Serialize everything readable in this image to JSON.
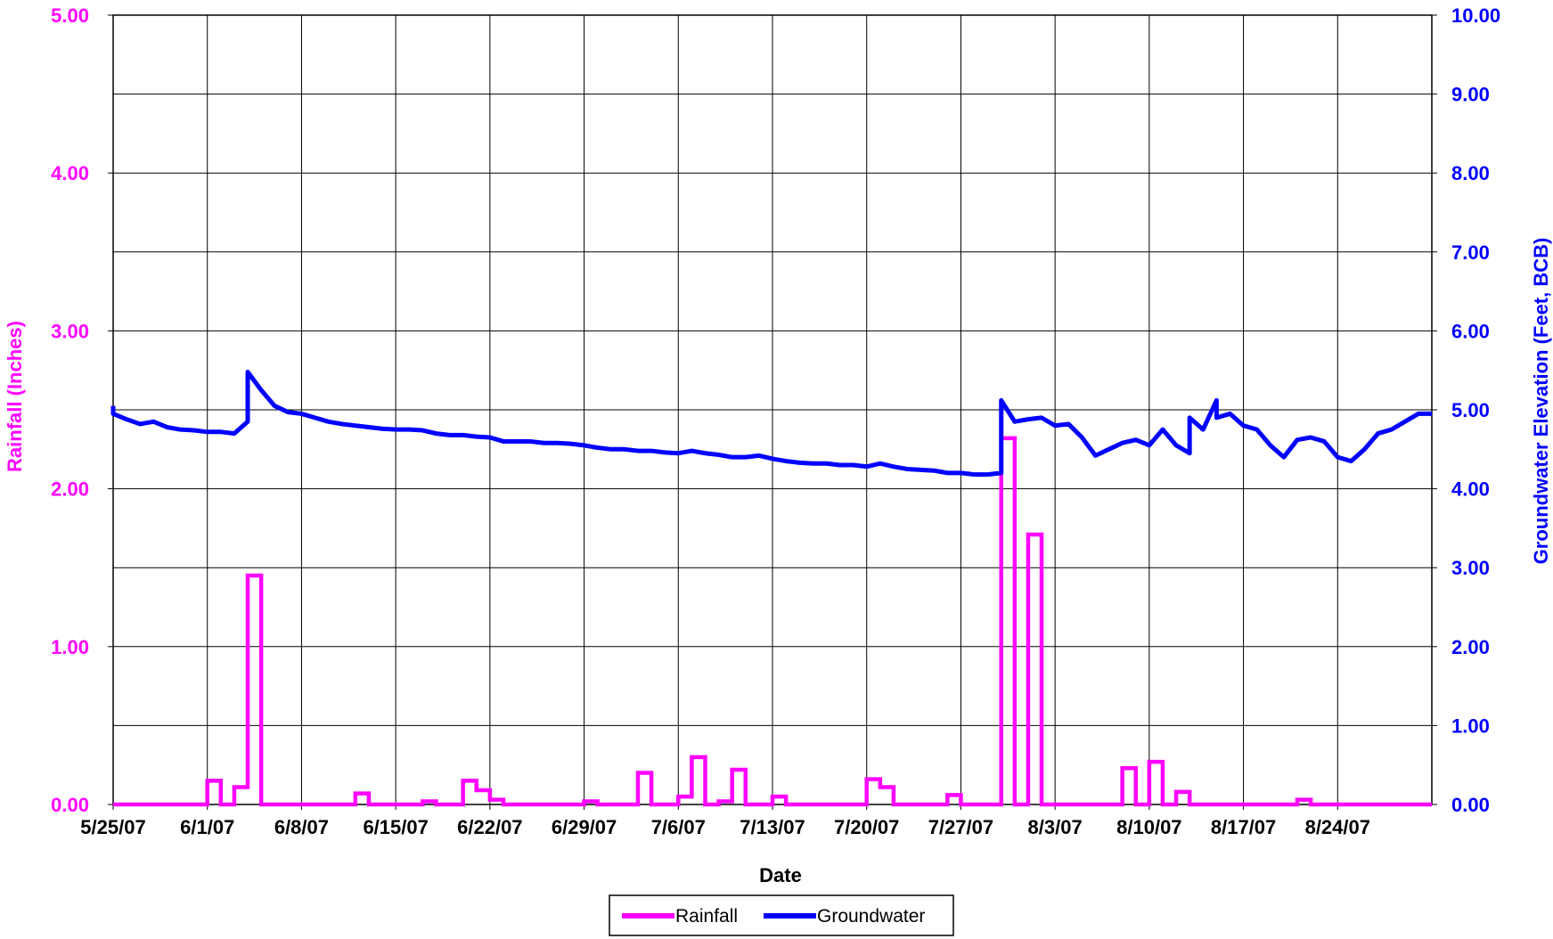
{
  "chart_data": {
    "type": "line",
    "title": "",
    "xlabel": "Date",
    "ylabel_left": "Rainfall (Inches)",
    "ylabel_right": "Groundwater Elevation (Feet, BCB)",
    "x_tick_labels": [
      "5/25/07",
      "6/1/07",
      "6/8/07",
      "6/15/07",
      "6/22/07",
      "6/29/07",
      "7/6/07",
      "7/13/07",
      "7/20/07",
      "7/27/07",
      "8/3/07",
      "8/10/07",
      "8/17/07",
      "8/24/07"
    ],
    "x_range": [
      "2007-05-25",
      "2007-08-31"
    ],
    "ylim_left": [
      0,
      5
    ],
    "ylim_right": [
      0,
      10
    ],
    "y_left_ticks": [
      "0.00",
      "1.00",
      "2.00",
      "3.00",
      "4.00",
      "5.00"
    ],
    "y_right_ticks": [
      "0.00",
      "1.00",
      "2.00",
      "3.00",
      "4.00",
      "5.00",
      "6.00",
      "7.00",
      "8.00",
      "9.00",
      "10.00"
    ],
    "grid": true,
    "legend_position": "bottom-center",
    "colors": {
      "rainfall": "#ff00ff",
      "groundwater": "#0000ff"
    },
    "series": [
      {
        "name": "Rainfall",
        "axis": "left",
        "style": "step",
        "points": [
          [
            "2007-06-01",
            0.15
          ],
          [
            "2007-06-02",
            0.0
          ],
          [
            "2007-06-03",
            0.11
          ],
          [
            "2007-06-04",
            1.45
          ],
          [
            "2007-06-05",
            0.0
          ],
          [
            "2007-06-12",
            0.07
          ],
          [
            "2007-06-13",
            0.0
          ],
          [
            "2007-06-17",
            0.02
          ],
          [
            "2007-06-18",
            0.0
          ],
          [
            "2007-06-20",
            0.15
          ],
          [
            "2007-06-21",
            0.09
          ],
          [
            "2007-06-22",
            0.03
          ],
          [
            "2007-06-23",
            0.0
          ],
          [
            "2007-06-29",
            0.02
          ],
          [
            "2007-06-30",
            0.0
          ],
          [
            "2007-07-03",
            0.2
          ],
          [
            "2007-07-04",
            0.0
          ],
          [
            "2007-07-06",
            0.05
          ],
          [
            "2007-07-07",
            0.3
          ],
          [
            "2007-07-08",
            0.0
          ],
          [
            "2007-07-09",
            0.02
          ],
          [
            "2007-07-10",
            0.22
          ],
          [
            "2007-07-11",
            0.0
          ],
          [
            "2007-07-13",
            0.05
          ],
          [
            "2007-07-14",
            0.0
          ],
          [
            "2007-07-20",
            0.16
          ],
          [
            "2007-07-21",
            0.11
          ],
          [
            "2007-07-22",
            0.0
          ],
          [
            "2007-07-26",
            0.06
          ],
          [
            "2007-07-27",
            0.0
          ],
          [
            "2007-07-30",
            2.32
          ],
          [
            "2007-07-31",
            0.0
          ],
          [
            "2007-08-01",
            1.71
          ],
          [
            "2007-08-02",
            0.0
          ],
          [
            "2007-08-08",
            0.23
          ],
          [
            "2007-08-09",
            0.0
          ],
          [
            "2007-08-10",
            0.27
          ],
          [
            "2007-08-11",
            0.0
          ],
          [
            "2007-08-12",
            0.08
          ],
          [
            "2007-08-13",
            0.0
          ],
          [
            "2007-08-21",
            0.03
          ],
          [
            "2007-08-22",
            0.0
          ]
        ]
      },
      {
        "name": "Groundwater",
        "axis": "right",
        "style": "line",
        "points": [
          [
            "2007-05-25",
            5.05
          ],
          [
            "2007-05-25",
            4.95
          ],
          [
            "2007-05-26",
            4.88
          ],
          [
            "2007-05-27",
            4.82
          ],
          [
            "2007-05-28",
            4.85
          ],
          [
            "2007-05-29",
            4.78
          ],
          [
            "2007-05-30",
            4.75
          ],
          [
            "2007-05-31",
            4.74
          ],
          [
            "2007-06-01",
            4.72
          ],
          [
            "2007-06-02",
            4.72
          ],
          [
            "2007-06-03",
            4.7
          ],
          [
            "2007-06-04",
            4.85
          ],
          [
            "2007-06-04",
            5.48
          ],
          [
            "2007-06-05",
            5.25
          ],
          [
            "2007-06-06",
            5.05
          ],
          [
            "2007-06-07",
            4.97
          ],
          [
            "2007-06-08",
            4.95
          ],
          [
            "2007-06-09",
            4.9
          ],
          [
            "2007-06-10",
            4.85
          ],
          [
            "2007-06-11",
            4.82
          ],
          [
            "2007-06-12",
            4.8
          ],
          [
            "2007-06-13",
            4.78
          ],
          [
            "2007-06-14",
            4.76
          ],
          [
            "2007-06-15",
            4.75
          ],
          [
            "2007-06-16",
            4.75
          ],
          [
            "2007-06-17",
            4.74
          ],
          [
            "2007-06-18",
            4.7
          ],
          [
            "2007-06-19",
            4.68
          ],
          [
            "2007-06-20",
            4.68
          ],
          [
            "2007-06-21",
            4.66
          ],
          [
            "2007-06-22",
            4.65
          ],
          [
            "2007-06-23",
            4.6
          ],
          [
            "2007-06-24",
            4.6
          ],
          [
            "2007-06-25",
            4.6
          ],
          [
            "2007-06-26",
            4.58
          ],
          [
            "2007-06-27",
            4.58
          ],
          [
            "2007-06-28",
            4.57
          ],
          [
            "2007-06-29",
            4.55
          ],
          [
            "2007-06-30",
            4.52
          ],
          [
            "2007-07-01",
            4.5
          ],
          [
            "2007-07-02",
            4.5
          ],
          [
            "2007-07-03",
            4.48
          ],
          [
            "2007-07-04",
            4.48
          ],
          [
            "2007-07-05",
            4.46
          ],
          [
            "2007-07-06",
            4.45
          ],
          [
            "2007-07-07",
            4.48
          ],
          [
            "2007-07-08",
            4.45
          ],
          [
            "2007-07-09",
            4.43
          ],
          [
            "2007-07-10",
            4.4
          ],
          [
            "2007-07-11",
            4.4
          ],
          [
            "2007-07-12",
            4.42
          ],
          [
            "2007-07-13",
            4.38
          ],
          [
            "2007-07-14",
            4.35
          ],
          [
            "2007-07-15",
            4.33
          ],
          [
            "2007-07-16",
            4.32
          ],
          [
            "2007-07-17",
            4.32
          ],
          [
            "2007-07-18",
            4.3
          ],
          [
            "2007-07-19",
            4.3
          ],
          [
            "2007-07-20",
            4.28
          ],
          [
            "2007-07-21",
            4.32
          ],
          [
            "2007-07-22",
            4.28
          ],
          [
            "2007-07-23",
            4.25
          ],
          [
            "2007-07-24",
            4.24
          ],
          [
            "2007-07-25",
            4.23
          ],
          [
            "2007-07-26",
            4.2
          ],
          [
            "2007-07-27",
            4.2
          ],
          [
            "2007-07-28",
            4.18
          ],
          [
            "2007-07-29",
            4.18
          ],
          [
            "2007-07-30",
            4.2
          ],
          [
            "2007-07-30",
            5.12
          ],
          [
            "2007-07-31",
            4.85
          ],
          [
            "2007-08-01",
            4.88
          ],
          [
            "2007-08-02",
            4.9
          ],
          [
            "2007-08-03",
            4.8
          ],
          [
            "2007-08-04",
            4.82
          ],
          [
            "2007-08-05",
            4.65
          ],
          [
            "2007-08-06",
            4.42
          ],
          [
            "2007-08-07",
            4.5
          ],
          [
            "2007-08-08",
            4.58
          ],
          [
            "2007-08-09",
            4.62
          ],
          [
            "2007-08-10",
            4.55
          ],
          [
            "2007-08-11",
            4.75
          ],
          [
            "2007-08-12",
            4.55
          ],
          [
            "2007-08-13",
            4.45
          ],
          [
            "2007-08-13",
            4.9
          ],
          [
            "2007-08-14",
            4.75
          ],
          [
            "2007-08-15",
            5.12
          ],
          [
            "2007-08-15",
            4.9
          ],
          [
            "2007-08-16",
            4.95
          ],
          [
            "2007-08-17",
            4.8
          ],
          [
            "2007-08-18",
            4.75
          ],
          [
            "2007-08-19",
            4.55
          ],
          [
            "2007-08-20",
            4.4
          ],
          [
            "2007-08-21",
            4.62
          ],
          [
            "2007-08-22",
            4.65
          ],
          [
            "2007-08-23",
            4.6
          ],
          [
            "2007-08-24",
            4.4
          ],
          [
            "2007-08-25",
            4.35
          ],
          [
            "2007-08-26",
            4.5
          ],
          [
            "2007-08-27",
            4.7
          ],
          [
            "2007-08-28",
            4.75
          ],
          [
            "2007-08-29",
            4.85
          ],
          [
            "2007-08-30",
            4.95
          ],
          [
            "2007-08-31",
            4.95
          ]
        ]
      }
    ]
  }
}
